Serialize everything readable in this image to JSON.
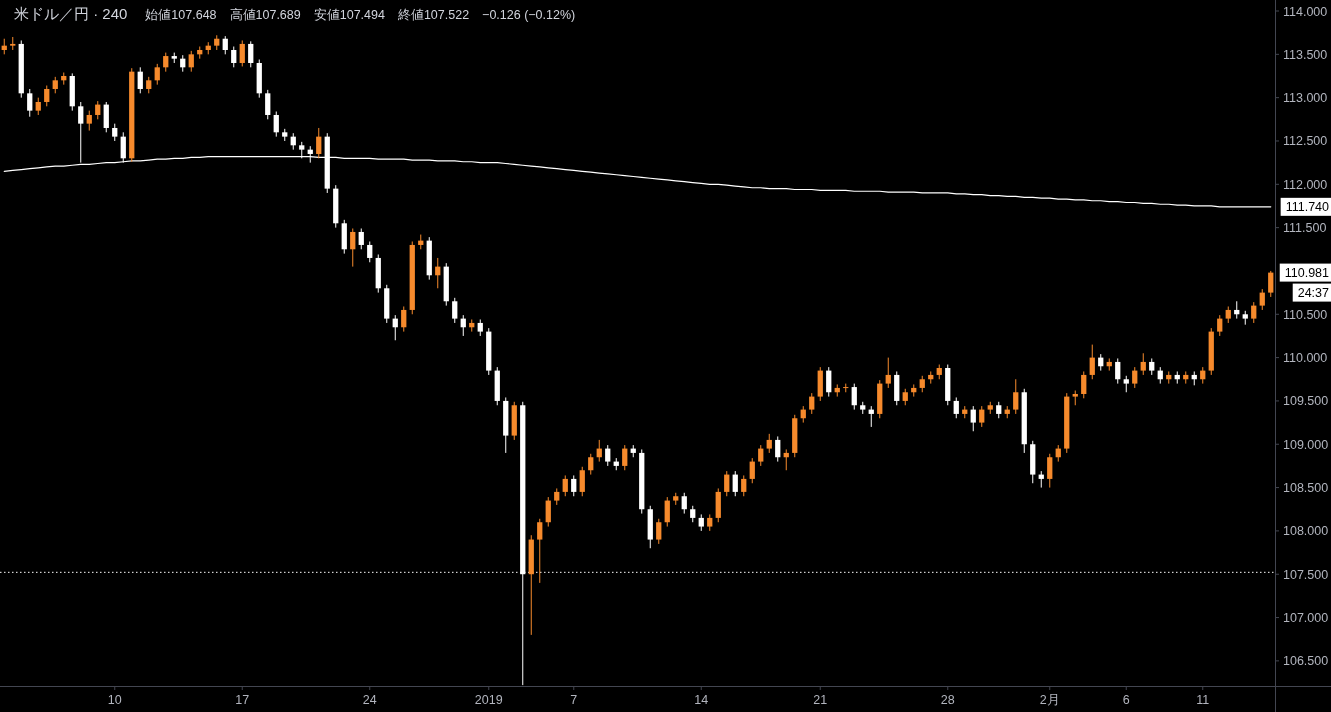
{
  "chart_data": {
    "type": "candlestick",
    "title": "米ドル／円 · 240",
    "subtitle": "始値107.648　高値107.689　安値107.494　終値107.522　−0.126 (−0.12%)",
    "categories": [
      null,
      null,
      null,
      null,
      null,
      null,
      null,
      null,
      null,
      null,
      null,
      null,
      null,
      "10",
      null,
      null,
      null,
      null,
      null,
      null,
      null,
      null,
      null,
      null,
      null,
      null,
      null,
      null,
      "17",
      null,
      null,
      null,
      null,
      null,
      null,
      null,
      null,
      null,
      null,
      null,
      null,
      null,
      null,
      "24",
      null,
      null,
      null,
      null,
      null,
      null,
      null,
      null,
      null,
      null,
      null,
      null,
      null,
      "2019",
      null,
      null,
      null,
      null,
      null,
      null,
      null,
      null,
      null,
      "7",
      null,
      null,
      null,
      null,
      null,
      null,
      null,
      null,
      null,
      null,
      null,
      null,
      null,
      null,
      "14",
      null,
      null,
      null,
      null,
      null,
      null,
      null,
      null,
      null,
      null,
      null,
      null,
      null,
      "21",
      null,
      null,
      null,
      null,
      null,
      null,
      null,
      null,
      null,
      null,
      null,
      null,
      null,
      null,
      "28",
      null,
      null,
      null,
      null,
      null,
      null,
      null,
      null,
      null,
      null,
      null,
      "2月",
      null,
      null,
      null,
      null,
      null,
      null,
      null,
      null,
      "6",
      null,
      null,
      null,
      null,
      null,
      null,
      null,
      null,
      "11",
      null,
      null,
      null,
      null,
      null,
      null,
      null,
      null
    ],
    "ohlc": [
      [
        113.55,
        113.68,
        113.5,
        113.6
      ],
      [
        113.6,
        113.7,
        113.55,
        113.62
      ],
      [
        113.62,
        113.66,
        113.0,
        113.05
      ],
      [
        113.05,
        113.1,
        112.78,
        112.85
      ],
      [
        112.85,
        113.0,
        112.8,
        112.95
      ],
      [
        112.95,
        113.14,
        112.9,
        113.1
      ],
      [
        113.1,
        113.24,
        113.05,
        113.2
      ],
      [
        113.2,
        113.29,
        113.15,
        113.25
      ],
      [
        113.25,
        113.28,
        112.85,
        112.9
      ],
      [
        112.9,
        112.95,
        112.25,
        112.7
      ],
      [
        112.7,
        112.85,
        112.62,
        112.8
      ],
      [
        112.8,
        112.96,
        112.75,
        112.92
      ],
      [
        112.92,
        112.95,
        112.6,
        112.65
      ],
      [
        112.65,
        112.7,
        112.5,
        112.55
      ],
      [
        112.55,
        112.6,
        112.25,
        112.3
      ],
      [
        112.3,
        113.34,
        112.26,
        113.3
      ],
      [
        113.3,
        113.35,
        113.05,
        113.1
      ],
      [
        113.1,
        113.24,
        113.05,
        113.2
      ],
      [
        113.2,
        113.39,
        113.15,
        113.35
      ],
      [
        113.35,
        113.52,
        113.3,
        113.48
      ],
      [
        113.48,
        113.52,
        113.4,
        113.45
      ],
      [
        113.45,
        113.49,
        113.3,
        113.35
      ],
      [
        113.35,
        113.54,
        113.3,
        113.5
      ],
      [
        113.5,
        113.59,
        113.45,
        113.55
      ],
      [
        113.55,
        113.64,
        113.5,
        113.6
      ],
      [
        113.6,
        113.72,
        113.55,
        113.68
      ],
      [
        113.68,
        113.71,
        113.5,
        113.55
      ],
      [
        113.55,
        113.59,
        113.35,
        113.4
      ],
      [
        113.4,
        113.66,
        113.36,
        113.62
      ],
      [
        113.62,
        113.65,
        113.35,
        113.4
      ],
      [
        113.4,
        113.44,
        113.0,
        113.05
      ],
      [
        113.05,
        113.09,
        112.75,
        112.8
      ],
      [
        112.8,
        112.84,
        112.55,
        112.6
      ],
      [
        112.6,
        112.64,
        112.5,
        112.55
      ],
      [
        112.55,
        112.59,
        112.4,
        112.45
      ],
      [
        112.45,
        112.49,
        112.3,
        112.4
      ],
      [
        112.4,
        112.44,
        112.25,
        112.35
      ],
      [
        112.35,
        112.65,
        112.3,
        112.55
      ],
      [
        112.55,
        112.59,
        111.9,
        111.95
      ],
      [
        111.95,
        111.99,
        111.5,
        111.55
      ],
      [
        111.55,
        111.59,
        111.2,
        111.25
      ],
      [
        111.25,
        111.49,
        111.05,
        111.45
      ],
      [
        111.45,
        111.49,
        111.25,
        111.3
      ],
      [
        111.3,
        111.34,
        111.1,
        111.15
      ],
      [
        111.15,
        111.19,
        110.75,
        110.8
      ],
      [
        110.8,
        110.84,
        110.4,
        110.45
      ],
      [
        110.45,
        110.49,
        110.2,
        110.35
      ],
      [
        110.35,
        110.59,
        110.3,
        110.55
      ],
      [
        110.55,
        111.34,
        110.5,
        111.3
      ],
      [
        111.3,
        111.42,
        111.25,
        111.35
      ],
      [
        111.35,
        111.39,
        110.9,
        110.95
      ],
      [
        110.95,
        111.15,
        110.8,
        111.05
      ],
      [
        111.05,
        111.09,
        110.6,
        110.65
      ],
      [
        110.65,
        110.69,
        110.4,
        110.45
      ],
      [
        110.45,
        110.49,
        110.25,
        110.35
      ],
      [
        110.35,
        110.44,
        110.3,
        110.4
      ],
      [
        110.4,
        110.44,
        110.25,
        110.3
      ],
      [
        110.3,
        110.34,
        109.8,
        109.85
      ],
      [
        109.85,
        109.89,
        109.45,
        109.5
      ],
      [
        109.5,
        109.54,
        108.9,
        109.1
      ],
      [
        109.1,
        109.49,
        109.05,
        109.45
      ],
      [
        109.45,
        109.49,
        106.22,
        107.5
      ],
      [
        107.5,
        107.95,
        106.8,
        107.9
      ],
      [
        107.9,
        108.14,
        107.4,
        108.1
      ],
      [
        108.1,
        108.39,
        108.05,
        108.35
      ],
      [
        108.35,
        108.49,
        108.3,
        108.45
      ],
      [
        108.45,
        108.64,
        108.4,
        108.6
      ],
      [
        108.6,
        108.64,
        108.4,
        108.45
      ],
      [
        108.45,
        108.74,
        108.4,
        108.7
      ],
      [
        108.7,
        108.89,
        108.65,
        108.85
      ],
      [
        108.85,
        109.05,
        108.8,
        108.95
      ],
      [
        108.95,
        108.99,
        108.75,
        108.8
      ],
      [
        108.8,
        108.84,
        108.7,
        108.75
      ],
      [
        108.75,
        108.99,
        108.7,
        108.95
      ],
      [
        108.95,
        108.99,
        108.85,
        108.9
      ],
      [
        108.9,
        108.94,
        108.2,
        108.25
      ],
      [
        108.25,
        108.29,
        107.8,
        107.9
      ],
      [
        107.9,
        108.14,
        107.85,
        108.1
      ],
      [
        108.1,
        108.39,
        108.05,
        108.35
      ],
      [
        108.35,
        108.44,
        108.3,
        108.4
      ],
      [
        108.4,
        108.44,
        108.2,
        108.25
      ],
      [
        108.25,
        108.29,
        108.1,
        108.15
      ],
      [
        108.15,
        108.19,
        108.0,
        108.05
      ],
      [
        108.05,
        108.19,
        108.0,
        108.15
      ],
      [
        108.15,
        108.49,
        108.1,
        108.45
      ],
      [
        108.45,
        108.69,
        108.4,
        108.65
      ],
      [
        108.65,
        108.69,
        108.4,
        108.45
      ],
      [
        108.45,
        108.64,
        108.4,
        108.6
      ],
      [
        108.6,
        108.84,
        108.55,
        108.8
      ],
      [
        108.8,
        108.99,
        108.75,
        108.95
      ],
      [
        108.95,
        109.12,
        108.9,
        109.05
      ],
      [
        109.05,
        109.09,
        108.8,
        108.85
      ],
      [
        108.85,
        108.94,
        108.7,
        108.9
      ],
      [
        108.9,
        109.34,
        108.85,
        109.3
      ],
      [
        109.3,
        109.44,
        109.25,
        109.4
      ],
      [
        109.4,
        109.59,
        109.35,
        109.55
      ],
      [
        109.55,
        109.89,
        109.5,
        109.85
      ],
      [
        109.85,
        109.89,
        109.55,
        109.6
      ],
      [
        109.6,
        109.69,
        109.55,
        109.65
      ],
      [
        109.65,
        109.7,
        109.6,
        109.66
      ],
      [
        109.66,
        109.7,
        109.4,
        109.45
      ],
      [
        109.45,
        109.49,
        109.35,
        109.4
      ],
      [
        109.4,
        109.44,
        109.2,
        109.35
      ],
      [
        109.35,
        109.74,
        109.3,
        109.7
      ],
      [
        109.7,
        110.0,
        109.65,
        109.8
      ],
      [
        109.8,
        109.84,
        109.45,
        109.5
      ],
      [
        109.5,
        109.64,
        109.45,
        109.6
      ],
      [
        109.6,
        109.69,
        109.55,
        109.65
      ],
      [
        109.65,
        109.79,
        109.6,
        109.75
      ],
      [
        109.75,
        109.84,
        109.7,
        109.8
      ],
      [
        109.8,
        109.92,
        109.75,
        109.88
      ],
      [
        109.88,
        109.92,
        109.45,
        109.5
      ],
      [
        109.5,
        109.54,
        109.3,
        109.35
      ],
      [
        109.35,
        109.44,
        109.3,
        109.4
      ],
      [
        109.4,
        109.44,
        109.15,
        109.25
      ],
      [
        109.25,
        109.44,
        109.2,
        109.4
      ],
      [
        109.4,
        109.49,
        109.35,
        109.45
      ],
      [
        109.45,
        109.49,
        109.3,
        109.35
      ],
      [
        109.35,
        109.44,
        109.3,
        109.4
      ],
      [
        109.4,
        109.75,
        109.35,
        109.6
      ],
      [
        109.6,
        109.64,
        108.9,
        109.0
      ],
      [
        109.0,
        109.04,
        108.55,
        108.65
      ],
      [
        108.65,
        108.69,
        108.5,
        108.6
      ],
      [
        108.6,
        108.89,
        108.5,
        108.85
      ],
      [
        108.85,
        108.99,
        108.8,
        108.95
      ],
      [
        108.95,
        109.59,
        108.9,
        109.55
      ],
      [
        109.55,
        109.62,
        109.45,
        109.58
      ],
      [
        109.58,
        109.84,
        109.53,
        109.8
      ],
      [
        109.8,
        110.15,
        109.75,
        110.0
      ],
      [
        110.0,
        110.04,
        109.85,
        109.9
      ],
      [
        109.9,
        109.99,
        109.85,
        109.95
      ],
      [
        109.95,
        109.99,
        109.7,
        109.75
      ],
      [
        109.75,
        109.79,
        109.6,
        109.7
      ],
      [
        109.7,
        109.89,
        109.65,
        109.85
      ],
      [
        109.85,
        110.05,
        109.8,
        109.95
      ],
      [
        109.95,
        109.99,
        109.8,
        109.85
      ],
      [
        109.85,
        109.89,
        109.7,
        109.75
      ],
      [
        109.75,
        109.84,
        109.7,
        109.8
      ],
      [
        109.8,
        109.84,
        109.7,
        109.75
      ],
      [
        109.75,
        109.84,
        109.7,
        109.8
      ],
      [
        109.8,
        109.84,
        109.68,
        109.75
      ],
      [
        109.75,
        109.89,
        109.7,
        109.85
      ],
      [
        109.85,
        110.34,
        109.8,
        110.3
      ],
      [
        110.3,
        110.49,
        110.25,
        110.45
      ],
      [
        110.45,
        110.59,
        110.4,
        110.55
      ],
      [
        110.55,
        110.65,
        110.45,
        110.5
      ],
      [
        110.5,
        110.54,
        110.38,
        110.45
      ],
      [
        110.45,
        110.64,
        110.4,
        110.6
      ],
      [
        110.6,
        110.79,
        110.55,
        110.75
      ],
      [
        110.75,
        111.0,
        110.7,
        110.981
      ]
    ],
    "colors": [
      "#f68a2c",
      "#f68a2c",
      "#ffffff",
      "#ffffff",
      "#f68a2c",
      "#f68a2c",
      "#f68a2c",
      "#f68a2c",
      "#ffffff",
      "#ffffff",
      "#f68a2c",
      "#f68a2c",
      "#ffffff",
      "#ffffff",
      "#ffffff",
      "#f68a2c",
      "#ffffff",
      "#f68a2c",
      "#f68a2c",
      "#f68a2c",
      "#ffffff",
      "#ffffff",
      "#f68a2c",
      "#f68a2c",
      "#f68a2c",
      "#f68a2c",
      "#ffffff",
      "#ffffff",
      "#f68a2c",
      "#ffffff",
      "#ffffff",
      "#ffffff",
      "#ffffff",
      "#ffffff",
      "#ffffff",
      "#ffffff",
      "#ffffff",
      "#f68a2c",
      "#ffffff",
      "#ffffff",
      "#ffffff",
      "#f68a2c",
      "#ffffff",
      "#ffffff",
      "#ffffff",
      "#ffffff",
      "#ffffff",
      "#f68a2c",
      "#f68a2c",
      "#f68a2c",
      "#ffffff",
      "#f68a2c",
      "#ffffff",
      "#ffffff",
      "#ffffff",
      "#f68a2c",
      "#ffffff",
      "#ffffff",
      "#ffffff",
      "#ffffff",
      "#f68a2c",
      "#ffffff",
      "#f68a2c",
      "#f68a2c",
      "#f68a2c",
      "#f68a2c",
      "#f68a2c",
      "#ffffff",
      "#f68a2c",
      "#f68a2c",
      "#f68a2c",
      "#ffffff",
      "#ffffff",
      "#f68a2c",
      "#ffffff",
      "#ffffff",
      "#ffffff",
      "#f68a2c",
      "#f68a2c",
      "#f68a2c",
      "#ffffff",
      "#ffffff",
      "#ffffff",
      "#f68a2c",
      "#f68a2c",
      "#f68a2c",
      "#ffffff",
      "#f68a2c",
      "#f68a2c",
      "#f68a2c",
      "#f68a2c",
      "#ffffff",
      "#f68a2c",
      "#f68a2c",
      "#f68a2c",
      "#f68a2c",
      "#f68a2c",
      "#ffffff",
      "#f68a2c",
      "#f68a2c",
      "#ffffff",
      "#ffffff",
      "#ffffff",
      "#f68a2c",
      "#f68a2c",
      "#ffffff",
      "#f68a2c",
      "#f68a2c",
      "#f68a2c",
      "#f68a2c",
      "#f68a2c",
      "#ffffff",
      "#ffffff",
      "#f68a2c",
      "#ffffff",
      "#f68a2c",
      "#f68a2c",
      "#ffffff",
      "#f68a2c",
      "#f68a2c",
      "#ffffff",
      "#ffffff",
      "#ffffff",
      "#f68a2c",
      "#f68a2c",
      "#f68a2c",
      "#f68a2c",
      "#f68a2c",
      "#f68a2c",
      "#ffffff",
      "#f68a2c",
      "#ffffff",
      "#ffffff",
      "#f68a2c",
      "#f68a2c",
      "#ffffff",
      "#ffffff",
      "#f68a2c",
      "#ffffff",
      "#f68a2c",
      "#ffffff",
      "#f68a2c",
      "#f68a2c",
      "#f68a2c",
      "#f68a2c",
      "#ffffff",
      "#ffffff",
      "#f68a2c",
      "#f68a2c",
      "#f68a2c"
    ],
    "series": [
      {
        "type": "line",
        "color": "#ffffff",
        "values": [
          112.15,
          112.16,
          112.17,
          112.18,
          112.19,
          112.2,
          112.21,
          112.21,
          112.22,
          112.23,
          112.23,
          112.24,
          112.25,
          112.25,
          112.26,
          112.27,
          112.27,
          112.28,
          112.29,
          112.29,
          112.3,
          112.3,
          112.31,
          112.31,
          112.32,
          112.32,
          112.32,
          112.32,
          112.32,
          112.32,
          112.32,
          112.32,
          112.32,
          112.32,
          112.32,
          112.32,
          112.32,
          112.31,
          112.31,
          112.31,
          112.3,
          112.3,
          112.3,
          112.3,
          112.29,
          112.29,
          112.29,
          112.29,
          112.28,
          112.28,
          112.28,
          112.27,
          112.27,
          112.27,
          112.26,
          112.26,
          112.25,
          112.25,
          112.25,
          112.24,
          112.23,
          112.22,
          112.21,
          112.2,
          112.19,
          112.18,
          112.17,
          112.16,
          112.15,
          112.14,
          112.13,
          112.12,
          112.11,
          112.1,
          112.09,
          112.08,
          112.07,
          112.06,
          112.05,
          112.04,
          112.03,
          112.02,
          112.01,
          112.0,
          112.0,
          111.99,
          111.98,
          111.97,
          111.96,
          111.96,
          111.95,
          111.95,
          111.95,
          111.94,
          111.94,
          111.94,
          111.93,
          111.93,
          111.93,
          111.93,
          111.92,
          111.92,
          111.92,
          111.92,
          111.91,
          111.91,
          111.91,
          111.91,
          111.9,
          111.9,
          111.9,
          111.9,
          111.89,
          111.89,
          111.88,
          111.88,
          111.87,
          111.87,
          111.86,
          111.86,
          111.85,
          111.85,
          111.84,
          111.84,
          111.83,
          111.83,
          111.82,
          111.82,
          111.81,
          111.81,
          111.8,
          111.8,
          111.79,
          111.79,
          111.78,
          111.78,
          111.77,
          111.77,
          111.76,
          111.76,
          111.75,
          111.75,
          111.75,
          111.74,
          111.74,
          111.74,
          111.74,
          111.74,
          111.74,
          111.74
        ]
      }
    ],
    "ylim": [
      106.21,
      114.127
    ],
    "yticks": [
      {
        "value": 106.5,
        "label": "106.500"
      },
      {
        "value": 107,
        "label": "107.000"
      },
      {
        "value": 107.5,
        "label": "107.500"
      },
      {
        "value": 108,
        "label": "108.000"
      },
      {
        "value": 108.5,
        "label": "108.500"
      },
      {
        "value": 109,
        "label": "109.000"
      },
      {
        "value": 109.5,
        "label": "109.500"
      },
      {
        "value": 110,
        "label": "110.000"
      },
      {
        "value": 110.5,
        "label": "110.500"
      },
      {
        "value": 111.5,
        "label": "111.500"
      },
      {
        "value": 112,
        "label": "112.000"
      },
      {
        "value": 112.5,
        "label": "112.500"
      },
      {
        "value": 113,
        "label": "113.000"
      },
      {
        "value": 113.5,
        "label": "113.500"
      },
      {
        "value": 114,
        "label": "114.000"
      }
    ],
    "ref_lines": [
      {
        "axis": "y",
        "value": 107.522,
        "color": "#ffffff",
        "line_style": "dotted"
      }
    ],
    "annotations": [
      "111.740",
      "110.981",
      "24:37"
    ]
  }
}
